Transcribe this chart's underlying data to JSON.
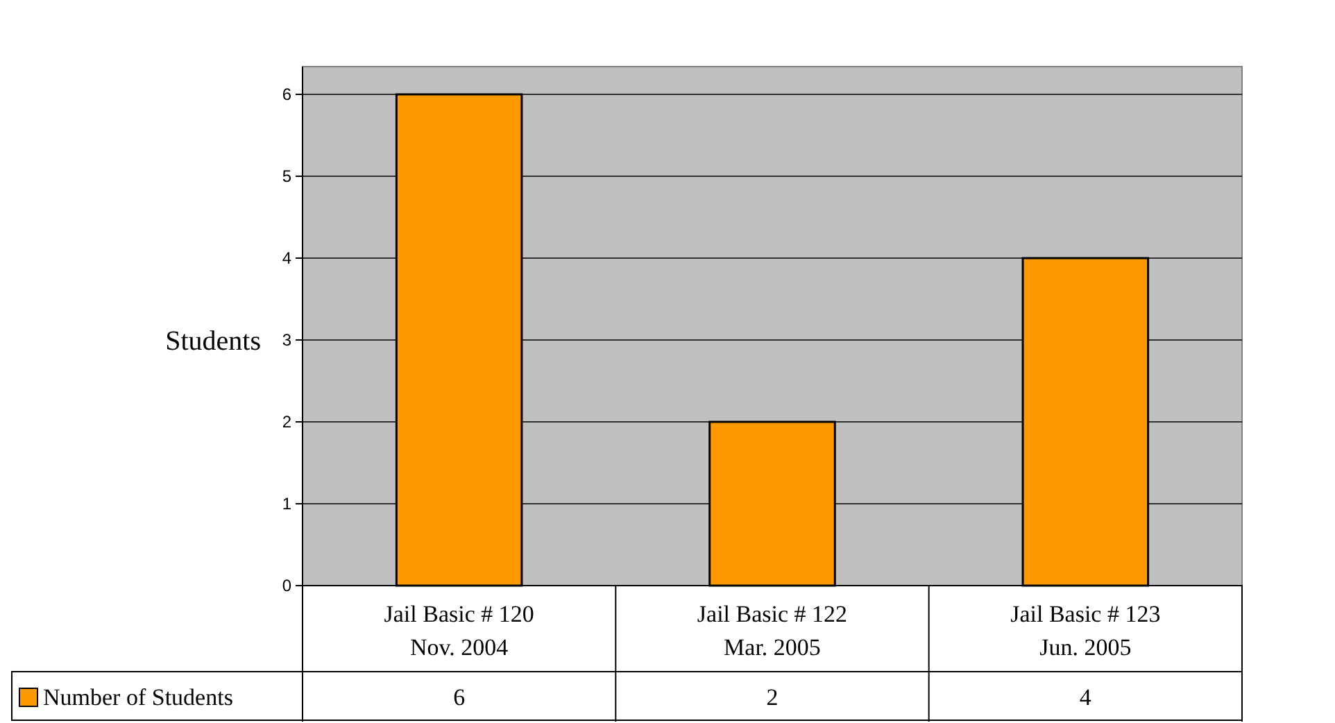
{
  "chart_data": {
    "type": "bar",
    "ylabel": "Students",
    "categories": [
      "Jail Basic # 120\nNov. 2004",
      "Jail Basic # 122\nMar. 2005",
      "Jail Basic # 123\nJun. 2005"
    ],
    "series": [
      {
        "name": "Number of Students",
        "color": "#ff9900",
        "values": [
          6,
          2,
          4
        ]
      }
    ],
    "ylim": [
      0,
      6
    ],
    "yticks": [
      0,
      1,
      2,
      3,
      4,
      5,
      6
    ],
    "grid": "y",
    "legend": "bottom left",
    "data_labels": true
  }
}
